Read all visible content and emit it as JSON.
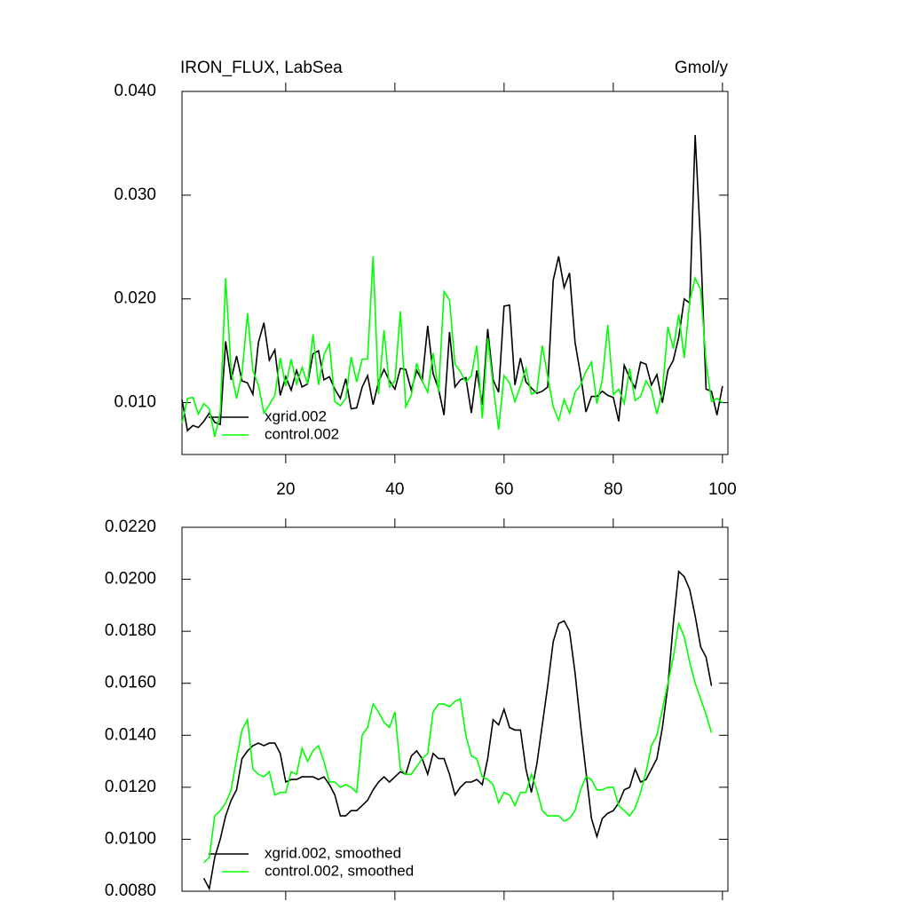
{
  "chart_data": [
    {
      "type": "line",
      "title": "IRON_FLUX, LabSea",
      "units": "Gmol/y",
      "x": [
        1,
        2,
        3,
        4,
        5,
        6,
        7,
        8,
        9,
        10,
        11,
        12,
        13,
        14,
        15,
        16,
        17,
        18,
        19,
        20,
        21,
        22,
        23,
        24,
        25,
        26,
        27,
        28,
        29,
        30,
        31,
        32,
        33,
        34,
        35,
        36,
        37,
        38,
        39,
        40,
        41,
        42,
        43,
        44,
        45,
        46,
        47,
        48,
        49,
        50,
        51,
        52,
        53,
        54,
        55,
        56,
        57,
        58,
        59,
        60,
        61,
        62,
        63,
        64,
        65,
        66,
        67,
        68,
        69,
        70,
        71,
        72,
        73,
        74,
        75,
        76,
        77,
        78,
        79,
        80,
        81,
        82,
        83,
        84,
        85,
        86,
        87,
        88,
        89,
        90,
        91,
        92,
        93,
        94,
        95,
        96,
        97,
        98,
        99,
        100
      ],
      "series": [
        {
          "name": "xgrid.002",
          "color": "#000000",
          "values": [
            0.0103,
            0.0073,
            0.0078,
            0.0076,
            0.0082,
            0.009,
            0.0081,
            0.0079,
            0.0159,
            0.0122,
            0.0145,
            0.0121,
            0.0119,
            0.0108,
            0.0158,
            0.0177,
            0.0141,
            0.0151,
            0.0107,
            0.0125,
            0.0112,
            0.0131,
            0.0115,
            0.0118,
            0.0147,
            0.015,
            0.0122,
            0.0125,
            0.0113,
            0.0104,
            0.0123,
            0.0094,
            0.0095,
            0.0115,
            0.0126,
            0.0098,
            0.012,
            0.0132,
            0.0121,
            0.0113,
            0.0133,
            0.0132,
            0.0112,
            0.0131,
            0.0121,
            0.0174,
            0.0128,
            0.0113,
            0.0088,
            0.0168,
            0.0115,
            0.0122,
            0.0124,
            0.009,
            0.0131,
            0.0098,
            0.0171,
            0.0122,
            0.011,
            0.0193,
            0.0194,
            0.0117,
            0.0143,
            0.012,
            0.0114,
            0.0109,
            0.0111,
            0.0115,
            0.0218,
            0.0241,
            0.0211,
            0.0225,
            0.0158,
            0.0127,
            0.0091,
            0.0106,
            0.0106,
            0.0111,
            0.0107,
            0.0105,
            0.0082,
            0.0136,
            0.0124,
            0.0114,
            0.0139,
            0.0137,
            0.0117,
            0.0127,
            0.01,
            0.0131,
            0.0141,
            0.0163,
            0.02,
            0.0196,
            0.0358,
            0.0252,
            0.0113,
            0.0111,
            0.0088,
            0.0116
          ]
        },
        {
          "name": "control.002",
          "color": "#00ff00",
          "values": [
            0.008,
            0.0104,
            0.0105,
            0.0089,
            0.0099,
            0.0094,
            0.0067,
            0.009,
            0.022,
            0.013,
            0.0104,
            0.0128,
            0.0186,
            0.0131,
            0.0117,
            0.009,
            0.0098,
            0.0107,
            0.0143,
            0.0116,
            0.0142,
            0.0118,
            0.0134,
            0.0118,
            0.0166,
            0.0117,
            0.0146,
            0.0157,
            0.0101,
            0.0097,
            0.0104,
            0.0144,
            0.012,
            0.0142,
            0.0142,
            0.0241,
            0.0108,
            0.017,
            0.0115,
            0.0121,
            0.0188,
            0.0096,
            0.0107,
            0.0138,
            0.0121,
            0.011,
            0.0148,
            0.011,
            0.0207,
            0.0199,
            0.0137,
            0.013,
            0.012,
            0.0126,
            0.0155,
            0.0085,
            0.0162,
            0.0117,
            0.0074,
            0.0126,
            0.0119,
            0.0101,
            0.0116,
            0.0133,
            0.0108,
            0.0111,
            0.0155,
            0.0125,
            0.0096,
            0.0083,
            0.0103,
            0.009,
            0.011,
            0.0117,
            0.013,
            0.0139,
            0.0099,
            0.0122,
            0.0175,
            0.0108,
            0.0113,
            0.0099,
            0.0133,
            0.0102,
            0.0106,
            0.0121,
            0.0112,
            0.0089,
            0.0111,
            0.0173,
            0.0152,
            0.0185,
            0.0143,
            0.0198,
            0.022,
            0.0209,
            0.0139,
            0.0101,
            0.0104,
            0.01
          ]
        }
      ],
      "xlim": [
        1,
        101
      ],
      "xticks": [
        20,
        40,
        60,
        80,
        100
      ],
      "xtick_labels": true,
      "ylim": [
        0.005,
        0.04
      ],
      "yticks": [
        {
          "value": 0.01,
          "label": "0.010"
        },
        {
          "value": 0.02,
          "label": "0.020"
        },
        {
          "value": 0.03,
          "label": "0.030"
        },
        {
          "value": 0.04,
          "label": "0.040"
        }
      ],
      "legend": "lower left"
    },
    {
      "type": "line",
      "x": [
        1,
        2,
        3,
        4,
        5,
        6,
        7,
        8,
        9,
        10,
        11,
        12,
        13,
        14,
        15,
        16,
        17,
        18,
        19,
        20,
        21,
        22,
        23,
        24,
        25,
        26,
        27,
        28,
        29,
        30,
        31,
        32,
        33,
        34,
        35,
        36,
        37,
        38,
        39,
        40,
        41,
        42,
        43,
        44,
        45,
        46,
        47,
        48,
        49,
        50,
        51,
        52,
        53,
        54,
        55,
        56,
        57,
        58,
        59,
        60,
        61,
        62,
        63,
        64,
        65,
        66,
        67,
        68,
        69,
        70,
        71,
        72,
        73,
        74,
        75,
        76,
        77,
        78,
        79,
        80,
        81,
        82,
        83,
        84,
        85,
        86,
        87,
        88,
        89,
        90,
        91,
        92,
        93,
        94,
        95,
        96,
        97,
        98,
        99,
        100
      ],
      "series": [
        {
          "name": "xgrid.002, smoothed",
          "color": "#000000",
          "values": [
            null,
            null,
            null,
            null,
            0.0085,
            0.0081,
            0.0093,
            0.01,
            0.0109,
            0.0115,
            0.0119,
            0.0131,
            0.0134,
            0.0136,
            0.0137,
            0.0136,
            0.0137,
            0.0137,
            0.0133,
            0.0122,
            0.0123,
            0.0123,
            0.0124,
            0.0124,
            0.0124,
            0.0123,
            0.0124,
            0.0121,
            0.0117,
            0.0109,
            0.0109,
            0.0111,
            0.0111,
            0.0113,
            0.0115,
            0.0119,
            0.0122,
            0.0124,
            0.0122,
            0.0124,
            0.0126,
            0.0125,
            0.0132,
            0.0134,
            0.0131,
            0.0125,
            0.0133,
            0.0131,
            0.0131,
            0.0125,
            0.0117,
            0.012,
            0.0122,
            0.0122,
            0.0123,
            0.0121,
            0.0131,
            0.0146,
            0.0144,
            0.015,
            0.0143,
            0.0142,
            0.0142,
            0.0127,
            0.0118,
            0.0129,
            0.0144,
            0.0159,
            0.0176,
            0.0183,
            0.0184,
            0.018,
            0.0164,
            0.0144,
            0.0126,
            0.0108,
            0.0101,
            0.0108,
            0.011,
            0.0111,
            0.0114,
            0.0119,
            0.012,
            0.0127,
            0.0122,
            0.0123,
            0.0127,
            0.0131,
            0.0143,
            0.0159,
            0.0183,
            0.0203,
            0.0201,
            0.0196,
            0.0186,
            0.0174,
            0.017,
            0.0159,
            null,
            null
          ]
        },
        {
          "name": "control.002, smoothed",
          "color": "#00ff00",
          "values": [
            null,
            null,
            null,
            null,
            0.0091,
            0.0093,
            0.0109,
            0.0111,
            0.0114,
            0.0119,
            0.0131,
            0.0142,
            0.0146,
            0.0127,
            0.0125,
            0.0124,
            0.0126,
            0.0117,
            0.0118,
            0.0118,
            0.0126,
            0.0125,
            0.0135,
            0.013,
            0.0134,
            0.0136,
            0.013,
            0.0122,
            0.0122,
            0.012,
            0.0121,
            0.012,
            0.0118,
            0.014,
            0.0143,
            0.0152,
            0.0149,
            0.0145,
            0.0143,
            0.0149,
            0.0127,
            0.0125,
            0.0125,
            0.0128,
            0.0131,
            0.0133,
            0.0149,
            0.0152,
            0.0152,
            0.0151,
            0.0153,
            0.0154,
            0.014,
            0.0132,
            0.0131,
            0.0124,
            0.0123,
            0.0121,
            0.0114,
            0.0118,
            0.0117,
            0.0113,
            0.0118,
            0.0118,
            0.0125,
            0.0119,
            0.0111,
            0.0109,
            0.0109,
            0.0109,
            0.0107,
            0.0108,
            0.0111,
            0.0119,
            0.0124,
            0.0123,
            0.0119,
            0.0119,
            0.012,
            0.012,
            0.0113,
            0.0111,
            0.0109,
            0.0112,
            0.0118,
            0.0126,
            0.0136,
            0.014,
            0.015,
            0.016,
            0.017,
            0.0183,
            0.0178,
            0.0168,
            0.016,
            0.0154,
            0.0148,
            0.0141,
            null,
            null
          ]
        }
      ],
      "xlim": [
        1,
        101
      ],
      "xticks": [
        20,
        40,
        60,
        80,
        100
      ],
      "xtick_labels": false,
      "ylim": [
        0.008,
        0.022
      ],
      "yticks": [
        {
          "value": 0.008,
          "label": "0.0080"
        },
        {
          "value": 0.01,
          "label": "0.0100"
        },
        {
          "value": 0.012,
          "label": "0.0120"
        },
        {
          "value": 0.014,
          "label": "0.0140"
        },
        {
          "value": 0.016,
          "label": "0.0160"
        },
        {
          "value": 0.018,
          "label": "0.0180"
        },
        {
          "value": 0.02,
          "label": "0.0200"
        },
        {
          "value": 0.022,
          "label": "0.0220"
        }
      ],
      "legend": "lower left"
    }
  ]
}
